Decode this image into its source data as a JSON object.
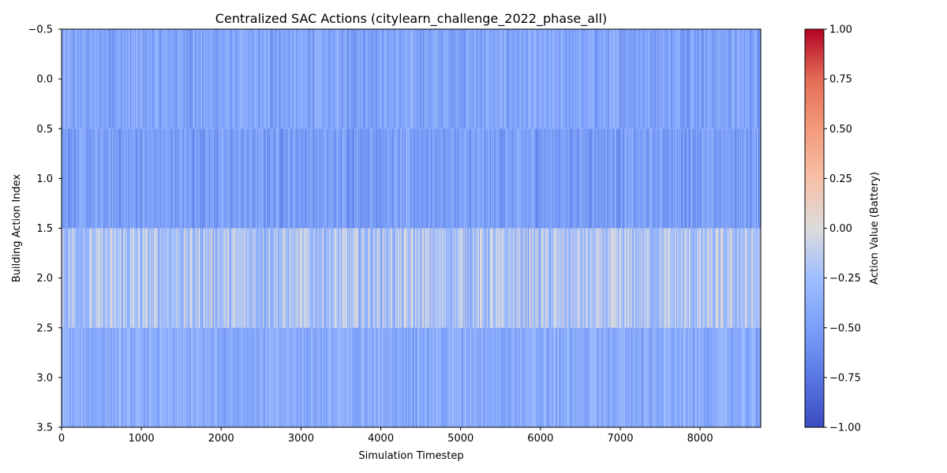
{
  "chart_data": {
    "type": "heatmap",
    "title": "Centralized SAC Actions (citylearn_challenge_2022_phase_all)",
    "xlabel": "Simulation Timestep",
    "ylabel": "Building Action Index",
    "xlim": [
      0,
      8760
    ],
    "ylim": [
      3.5,
      -0.5
    ],
    "x_ticks": [
      0,
      1000,
      2000,
      3000,
      4000,
      5000,
      6000,
      7000,
      8000
    ],
    "x_tick_labels": [
      "0",
      "1000",
      "2000",
      "3000",
      "4000",
      "5000",
      "6000",
      "7000",
      "8000"
    ],
    "y_ticks": [
      -0.5,
      0.0,
      0.5,
      1.0,
      1.5,
      2.0,
      2.5,
      3.0,
      3.5
    ],
    "y_tick_labels": [
      "−0.5",
      "0.0",
      "0.5",
      "1.0",
      "1.5",
      "2.0",
      "2.5",
      "3.0",
      "3.5"
    ],
    "rows": [
      0,
      1,
      2,
      3
    ],
    "timesteps": 8760,
    "row_mean_values": [
      -0.45,
      -0.5,
      -0.22,
      -0.4
    ],
    "colormap": "coolwarm",
    "colorbar": {
      "label": "Action Value (Battery)",
      "vmin": -1.0,
      "vmax": 1.0,
      "ticks": [
        1.0,
        0.75,
        0.5,
        0.25,
        0.0,
        -0.25,
        -0.5,
        -0.75,
        -1.0
      ],
      "tick_labels": [
        "1.00",
        "0.75",
        "0.50",
        "0.25",
        "0.00",
        "−0.25",
        "−0.50",
        "−0.75",
        "−1.00"
      ]
    }
  }
}
